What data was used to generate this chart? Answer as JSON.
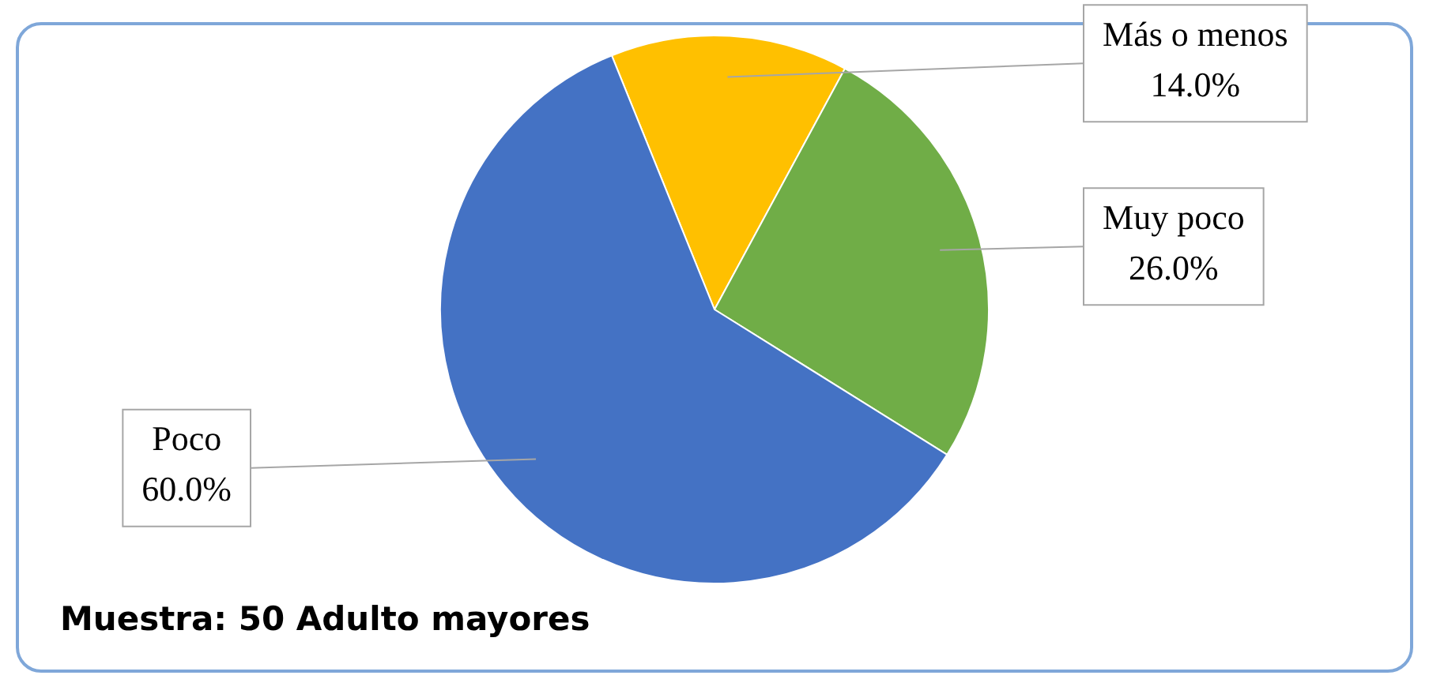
{
  "chart_data": {
    "type": "pie",
    "categories": [
      "Más o menos",
      "Muy poco",
      "Poco"
    ],
    "values": [
      14.0,
      26.0,
      60.0
    ],
    "value_labels": [
      "14.0%",
      "26.0%",
      "60.0%"
    ],
    "colors": [
      "#ffc000",
      "#70ad47",
      "#4472c4"
    ],
    "legend": false,
    "annotations": [
      "Muestra: 50 Adulto mayores"
    ]
  }
}
